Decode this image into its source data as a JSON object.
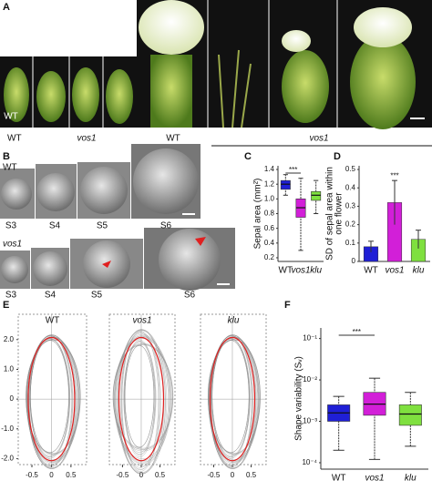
{
  "panels": {
    "A": {
      "label": "A",
      "bud_labels": [
        "WT",
        "vos1"
      ],
      "flower_labels": [
        "WT",
        "vos1"
      ]
    },
    "B": {
      "label": "B",
      "rows": [
        {
          "genotype": "WT",
          "stages": [
            "S3",
            "S4",
            "S5",
            "S6"
          ]
        },
        {
          "genotype": "vos1",
          "stages": [
            "S3",
            "S4",
            "S5",
            "S6"
          ]
        }
      ]
    }
  },
  "chart_data": [
    {
      "type": "box",
      "panel": "C",
      "ylabel": "Sepal area (mm²)",
      "categories": [
        "WT",
        "vos1",
        "klu"
      ],
      "colors": [
        "#1f1fd6",
        "#d21fd8",
        "#7fe03f"
      ],
      "boxes": [
        {
          "min": 1.05,
          "q1": 1.13,
          "median": 1.2,
          "q3": 1.25,
          "max": 1.33
        },
        {
          "min": 0.3,
          "q1": 0.75,
          "median": 0.88,
          "q3": 1.0,
          "max": 1.28
        },
        {
          "min": 0.8,
          "q1": 0.98,
          "median": 1.05,
          "q3": 1.1,
          "max": 1.25
        }
      ],
      "annotation": "***",
      "ylim": [
        0.15,
        1.45
      ],
      "yticks": [
        0.2,
        0.4,
        0.6,
        0.8,
        {
          "value": 1,
          "label": "1.0"
        },
        1.2,
        1.4
      ]
    },
    {
      "type": "bar",
      "panel": "D",
      "ylabel": [
        "SD of sepal area within",
        "one flower"
      ],
      "categories": [
        "WT",
        "vos1",
        "klu"
      ],
      "colors": [
        "#1f1fd6",
        "#d21fd8",
        "#7fe03f"
      ],
      "values": [
        0.08,
        0.32,
        0.12
      ],
      "errors": [
        0.03,
        0.12,
        0.05
      ],
      "annotation": "***",
      "ylim": [
        0,
        0.52
      ],
      "yticks": [
        0,
        0.1,
        0.2,
        0.3,
        0.4,
        0.5
      ]
    },
    {
      "type": "contour",
      "panel": "E",
      "title": "WT",
      "xlim": [
        -0.85,
        0.9
      ],
      "ylim": [
        -2.2,
        2.85
      ],
      "xticks": [
        -0.5,
        0,
        0.5
      ],
      "yticks": [
        {
          "value": 2,
          "label": "2.0"
        },
        {
          "value": 1,
          "label": "1.0"
        },
        0,
        {
          "value": -1,
          "label": "-1.0"
        },
        {
          "value": -2,
          "label": "-2.0"
        }
      ]
    },
    {
      "type": "contour",
      "title": "vos1",
      "xlim": [
        -0.85,
        0.9
      ],
      "ylim": [
        -2.2,
        2.85
      ],
      "xticks": [
        -0.5,
        0,
        0.5
      ]
    },
    {
      "type": "contour",
      "title": "klu",
      "xlim": [
        -0.85,
        0.9
      ],
      "ylim": [
        -2.2,
        2.85
      ],
      "xticks": [
        -0.5,
        0,
        0.5
      ]
    },
    {
      "type": "box",
      "panel": "F",
      "ylabel": "Shape variability (Sᵥ)",
      "categories": [
        "WT",
        "vos1",
        "klu"
      ],
      "log_scale": true,
      "colors": [
        "#1f1fd6",
        "#d21fd8",
        "#7fe03f"
      ],
      "boxes": [
        {
          "min": 0.0002,
          "q1": 0.001,
          "median": 0.0016,
          "q3": 0.0025,
          "max": 0.004
        },
        {
          "min": 0.00012,
          "q1": 0.0014,
          "median": 0.0026,
          "q3": 0.005,
          "max": 0.011
        },
        {
          "min": 0.00025,
          "q1": 0.0008,
          "median": 0.0015,
          "q3": 0.0025,
          "max": 0.005
        }
      ],
      "annotation": "***",
      "ylim": [
        7e-05,
        0.18
      ],
      "yticks": [
        {
          "value": 0.1,
          "label": "10⁻¹"
        },
        {
          "value": 0.01,
          "label": "10⁻²"
        },
        {
          "value": 0.001,
          "label": "10⁻³"
        },
        {
          "value": 0.0001,
          "label": "10⁻⁴"
        }
      ]
    }
  ]
}
